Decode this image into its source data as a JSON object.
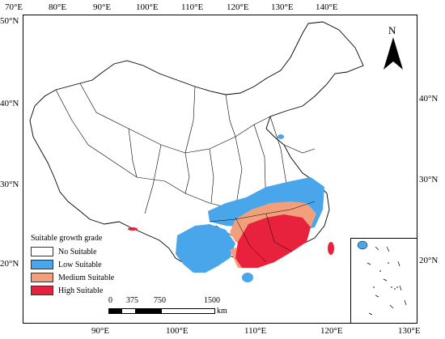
{
  "axes": {
    "top_ticks": [
      "70°E",
      "80°E",
      "90°E",
      "100°E",
      "110°E",
      "120°E",
      "130°E",
      "140°E"
    ],
    "bottom_ticks": [
      "90°E",
      "100°E",
      "110°E",
      "120°E",
      "130°E"
    ],
    "left_ticks": [
      "50°N",
      "40°N",
      "30°N",
      "20°N"
    ],
    "right_ticks": [
      "40°N",
      "30°N",
      "20°N"
    ]
  },
  "north_arrow": {
    "label": "N",
    "icon": "north-arrow-icon"
  },
  "legend": {
    "title": "Suitable growth grade",
    "items": [
      {
        "label": "No Suitable",
        "color": "#ffffff"
      },
      {
        "label": "Low Suitable",
        "color": "#4aa6ea"
      },
      {
        "label": "Medium Suitable",
        "color": "#f2a07c"
      },
      {
        "label": "High Suitable",
        "color": "#e8223c"
      }
    ]
  },
  "scale_bar": {
    "labels": [
      "0",
      "375",
      "750",
      "1500"
    ],
    "unit": "km"
  },
  "colors": {
    "land_fill": "#ffffff",
    "border": "#000000",
    "low": "#4aa6ea",
    "medium": "#f2a07c",
    "high": "#e8223c"
  }
}
